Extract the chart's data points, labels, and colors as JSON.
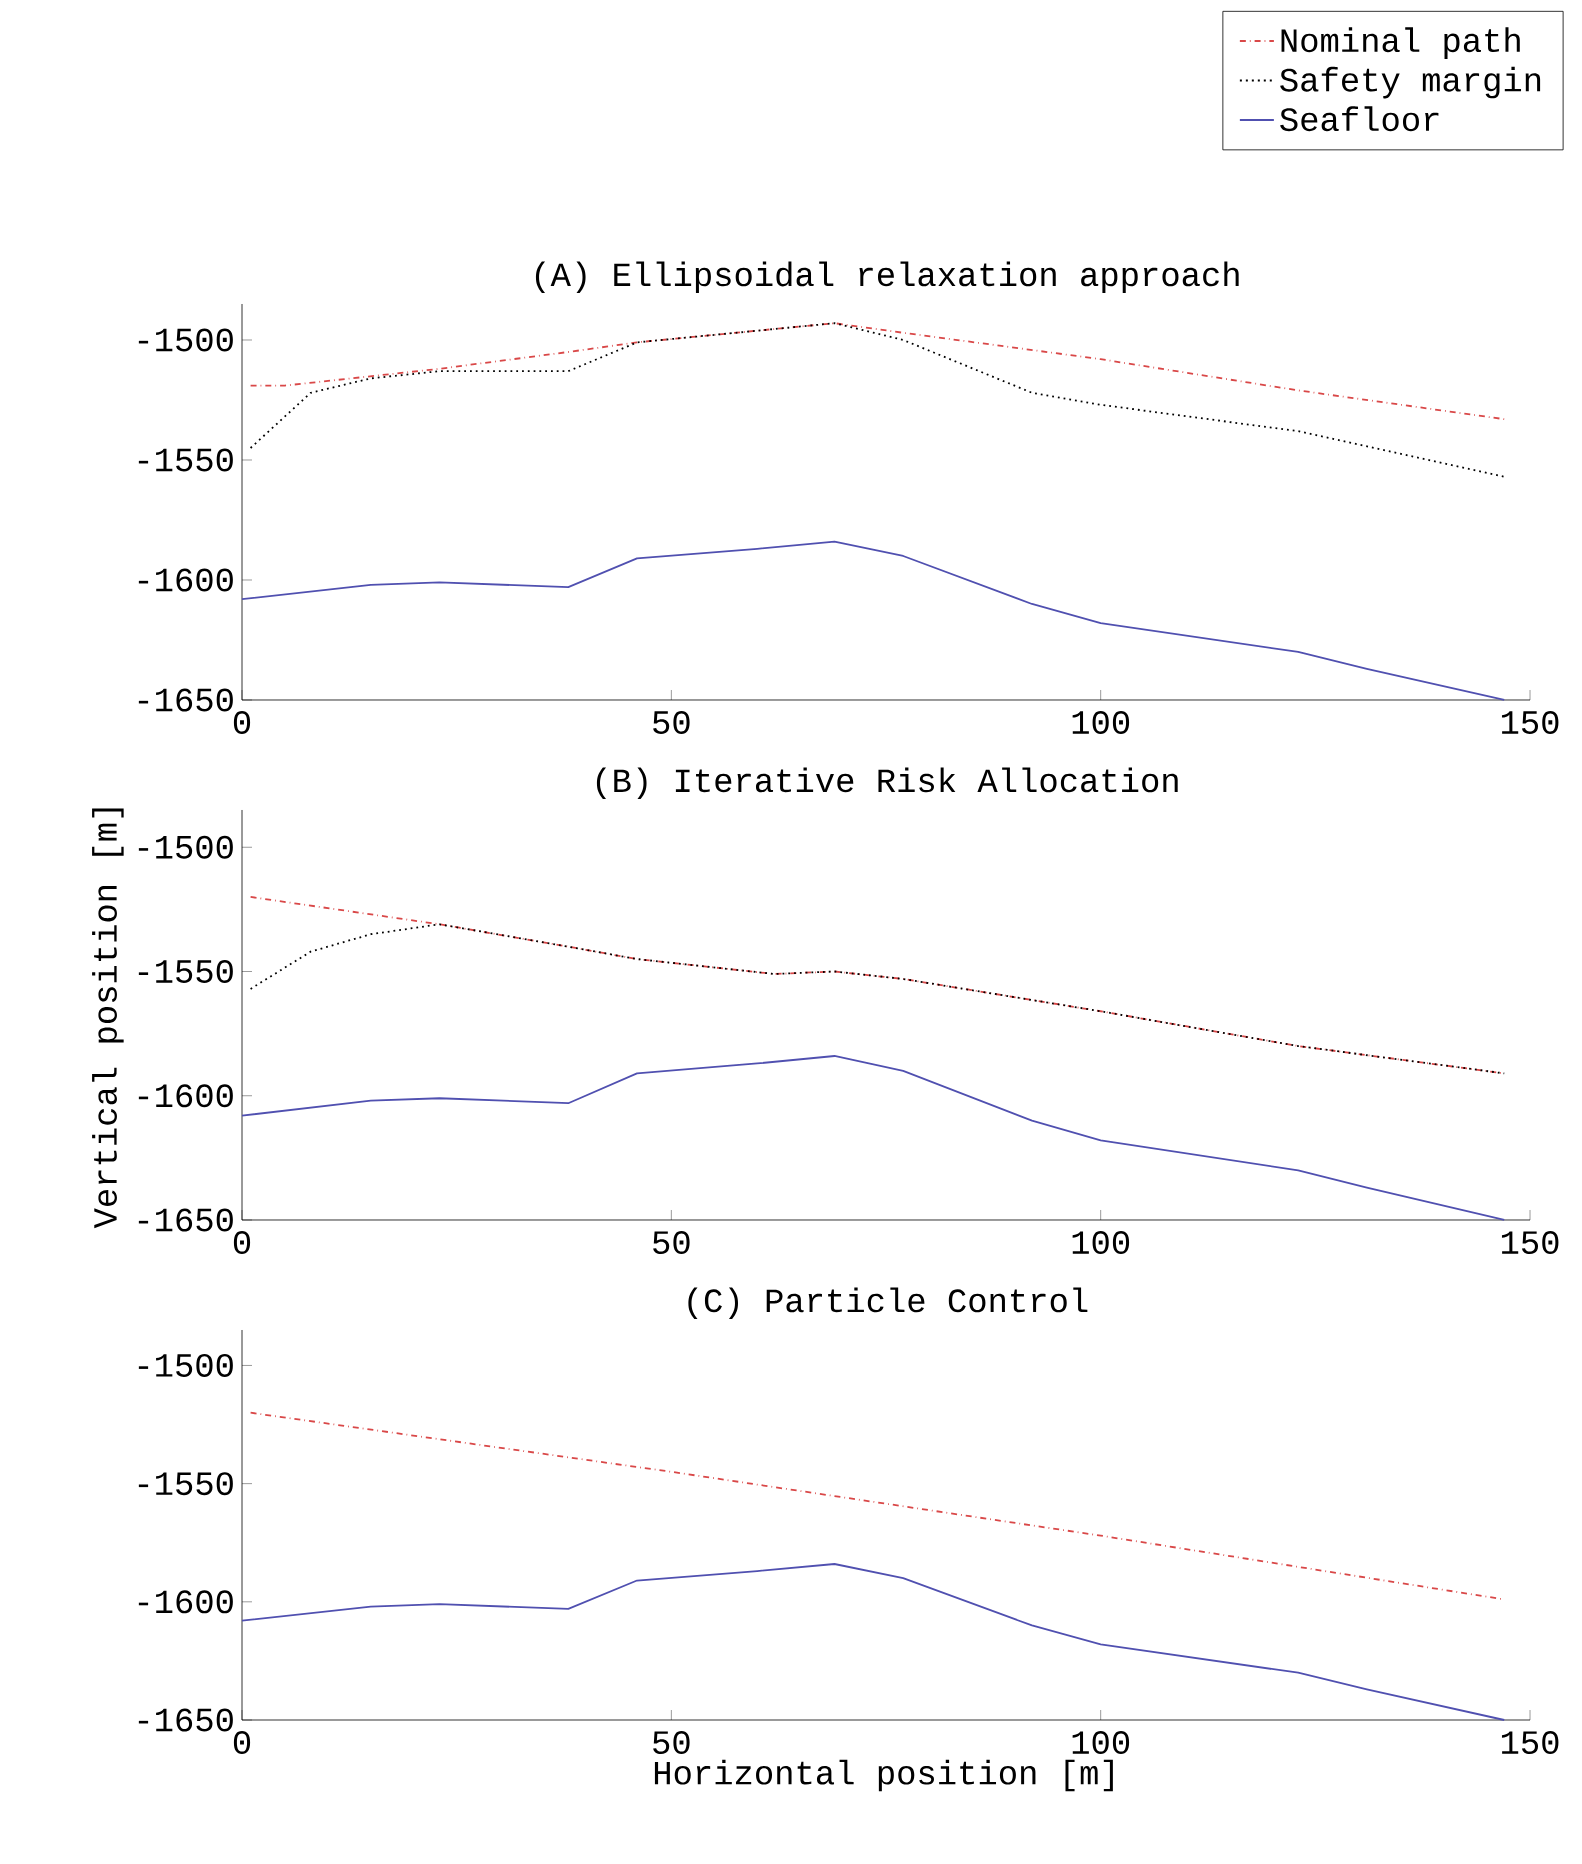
{
  "chart_data": [
    {
      "type": "line",
      "title": "(A) Ellipsoidal relaxation approach",
      "xlim": [
        0,
        150
      ],
      "ylim": [
        -1650,
        -1485
      ],
      "xticks": [
        0,
        50,
        100,
        150
      ],
      "yticks": [
        -1650,
        -1600,
        -1550,
        -1500
      ],
      "legend": "top right",
      "series": [
        {
          "name": "Nominal path",
          "color": "#d94848",
          "line_style": "dashdot",
          "x": [
            1,
            5,
            23,
            38,
            46,
            69,
            77,
            100,
            123,
            147
          ],
          "values": [
            -1519,
            -1519,
            -1512,
            -1505,
            -1501,
            -1493,
            -1497,
            -1508,
            -1521,
            -1533
          ]
        },
        {
          "name": "Safety margin",
          "color": "#000000",
          "line_style": "dotted",
          "x": [
            1,
            8,
            15,
            23,
            38,
            46,
            69,
            77,
            92,
            100,
            123,
            147
          ],
          "values": [
            -1545,
            -1522,
            -1516,
            -1513,
            -1513,
            -1501,
            -1493,
            -1500,
            -1522,
            -1527,
            -1538,
            -1557
          ]
        },
        {
          "name": "Seafloor",
          "color": "#5050b0",
          "line_style": "solid",
          "x": [
            0,
            15,
            23,
            38,
            46,
            60,
            69,
            77,
            92,
            100,
            123,
            131,
            147
          ],
          "values": [
            -1608,
            -1602,
            -1601,
            -1603,
            -1591,
            -1587,
            -1584,
            -1590,
            -1610,
            -1618,
            -1630,
            -1637,
            -1650
          ]
        }
      ]
    },
    {
      "type": "line",
      "title": "(B) Iterative Risk Allocation",
      "ylabel": "Vertical position [m]",
      "xlim": [
        0,
        150
      ],
      "ylim": [
        -1650,
        -1485
      ],
      "xticks": [
        0,
        50,
        100,
        150
      ],
      "yticks": [
        -1650,
        -1600,
        -1550,
        -1500
      ],
      "series": [
        {
          "color": "#d94848",
          "line_style": "dashdot",
          "x": [
            1,
            23,
            38,
            46,
            62,
            69,
            77,
            100,
            123,
            147
          ],
          "values": [
            -1520,
            -1531,
            -1540,
            -1545,
            -1551,
            -1550,
            -1553,
            -1566,
            -1580,
            -1591
          ]
        },
        {
          "color": "#000000",
          "line_style": "dotted",
          "x": [
            1,
            8,
            15,
            23,
            38,
            46,
            62,
            69,
            77,
            100,
            123,
            147
          ],
          "values": [
            -1557,
            -1542,
            -1535,
            -1531,
            -1540,
            -1545,
            -1551,
            -1550,
            -1553,
            -1566,
            -1580,
            -1591
          ]
        },
        {
          "color": "#5050b0",
          "line_style": "solid",
          "x": [
            0,
            15,
            23,
            38,
            46,
            60,
            69,
            77,
            92,
            100,
            123,
            131,
            147
          ],
          "values": [
            -1608,
            -1602,
            -1601,
            -1603,
            -1591,
            -1587,
            -1584,
            -1590,
            -1610,
            -1618,
            -1630,
            -1637,
            -1650
          ]
        }
      ]
    },
    {
      "type": "line",
      "title": "(C) Particle Control",
      "xlabel": "Horizontal position [m]",
      "xlim": [
        0,
        150
      ],
      "ylim": [
        -1650,
        -1485
      ],
      "xticks": [
        0,
        50,
        100,
        150
      ],
      "yticks": [
        -1650,
        -1600,
        -1550,
        -1500
      ],
      "series": [
        {
          "color": "#d94848",
          "line_style": "dashdot",
          "x": [
            1,
            50,
            100,
            147
          ],
          "values": [
            -1520,
            -1545,
            -1572,
            -1599
          ]
        },
        {
          "color": "#5050b0",
          "line_style": "solid",
          "x": [
            0,
            15,
            23,
            38,
            46,
            60,
            69,
            77,
            92,
            100,
            123,
            131,
            147
          ],
          "values": [
            -1608,
            -1602,
            -1601,
            -1603,
            -1591,
            -1587,
            -1584,
            -1590,
            -1610,
            -1618,
            -1630,
            -1637,
            -1650
          ]
        }
      ]
    }
  ]
}
